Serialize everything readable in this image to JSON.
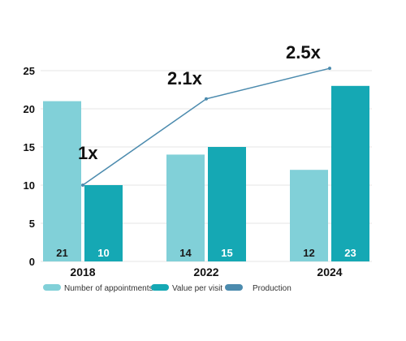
{
  "chart_data": {
    "type": "bar",
    "categories": [
      "2018",
      "2022",
      "2024"
    ],
    "series": [
      {
        "name": "Number of appointments",
        "values": [
          21,
          14,
          12
        ],
        "color": "#81D0D8"
      },
      {
        "name": "Value per visit",
        "values": [
          10,
          15,
          23
        ],
        "color": "#15A8B4"
      }
    ],
    "line_series": {
      "name": "Production",
      "values": [
        10,
        21.3,
        25.3
      ],
      "labels": [
        "1x",
        "2.1x",
        "2.5x"
      ],
      "color": "#4C8BAE"
    },
    "ylim": [
      0,
      25
    ],
    "yticks": [
      "0",
      "5",
      "10",
      "15",
      "20",
      "25"
    ],
    "xlabel": "",
    "ylabel": "",
    "grid": true,
    "legend_position": "bottom-left",
    "bar_label_colors": {
      "Number of appointments": "#1A1A1A",
      "Value per visit": "#FFFFFF"
    }
  }
}
